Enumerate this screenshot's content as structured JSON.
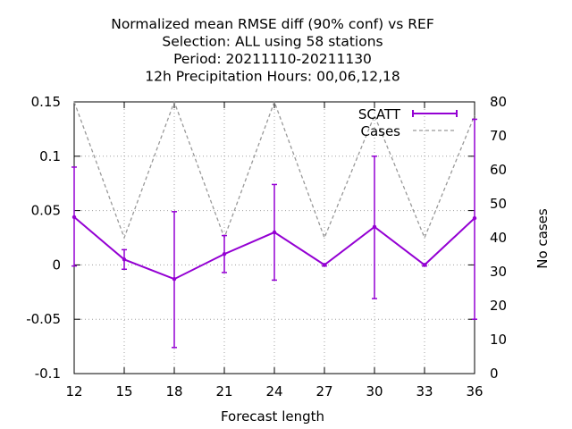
{
  "chart_data": {
    "type": "line",
    "title_lines": [
      "Normalized mean RMSE diff (90% conf) vs REF",
      "Selection: ALL using    58 stations",
      "Period: 20211110-20211130",
      "12h Precipitation    Hours:  00,06,12,18"
    ],
    "xlabel": "Forecast length",
    "ylabel_right": "No cases",
    "x": [
      12,
      15,
      18,
      21,
      24,
      27,
      30,
      33,
      36
    ],
    "x_ticks": [
      "12",
      "15",
      "18",
      "21",
      "24",
      "27",
      "30",
      "33",
      "36"
    ],
    "xlim": [
      12,
      36
    ],
    "ylim": [
      -0.1,
      0.15
    ],
    "y_ticks": [
      "-0.1",
      "-0.05",
      "0",
      "0.05",
      "0.1",
      "0.15"
    ],
    "y_tick_values": [
      -0.1,
      -0.05,
      0,
      0.05,
      0.1,
      0.15
    ],
    "y2lim": [
      0,
      80
    ],
    "y2_ticks": [
      "0",
      "10",
      "20",
      "30",
      "40",
      "50",
      "60",
      "70",
      "80"
    ],
    "y2_tick_values": [
      0,
      10,
      20,
      30,
      40,
      50,
      60,
      70,
      80
    ],
    "grid": true,
    "legend_position": "top-right",
    "series": [
      {
        "name": "SCATT",
        "color": "#9400d3",
        "axis": "left",
        "values": [
          0.044,
          0.005,
          -0.013,
          0.01,
          0.03,
          0.0,
          0.035,
          0.0,
          0.043
        ],
        "lower": [
          -0.001,
          -0.004,
          -0.076,
          -0.007,
          -0.014,
          -0.001,
          -0.031,
          -0.001,
          -0.05
        ],
        "upper": [
          0.09,
          0.014,
          0.049,
          0.027,
          0.074,
          0.001,
          0.1,
          0.001,
          0.134
        ]
      },
      {
        "name": "Cases",
        "color": "#999999",
        "axis": "right",
        "values": [
          80,
          40,
          80,
          40,
          80,
          40,
          76,
          40,
          76
        ]
      }
    ]
  }
}
